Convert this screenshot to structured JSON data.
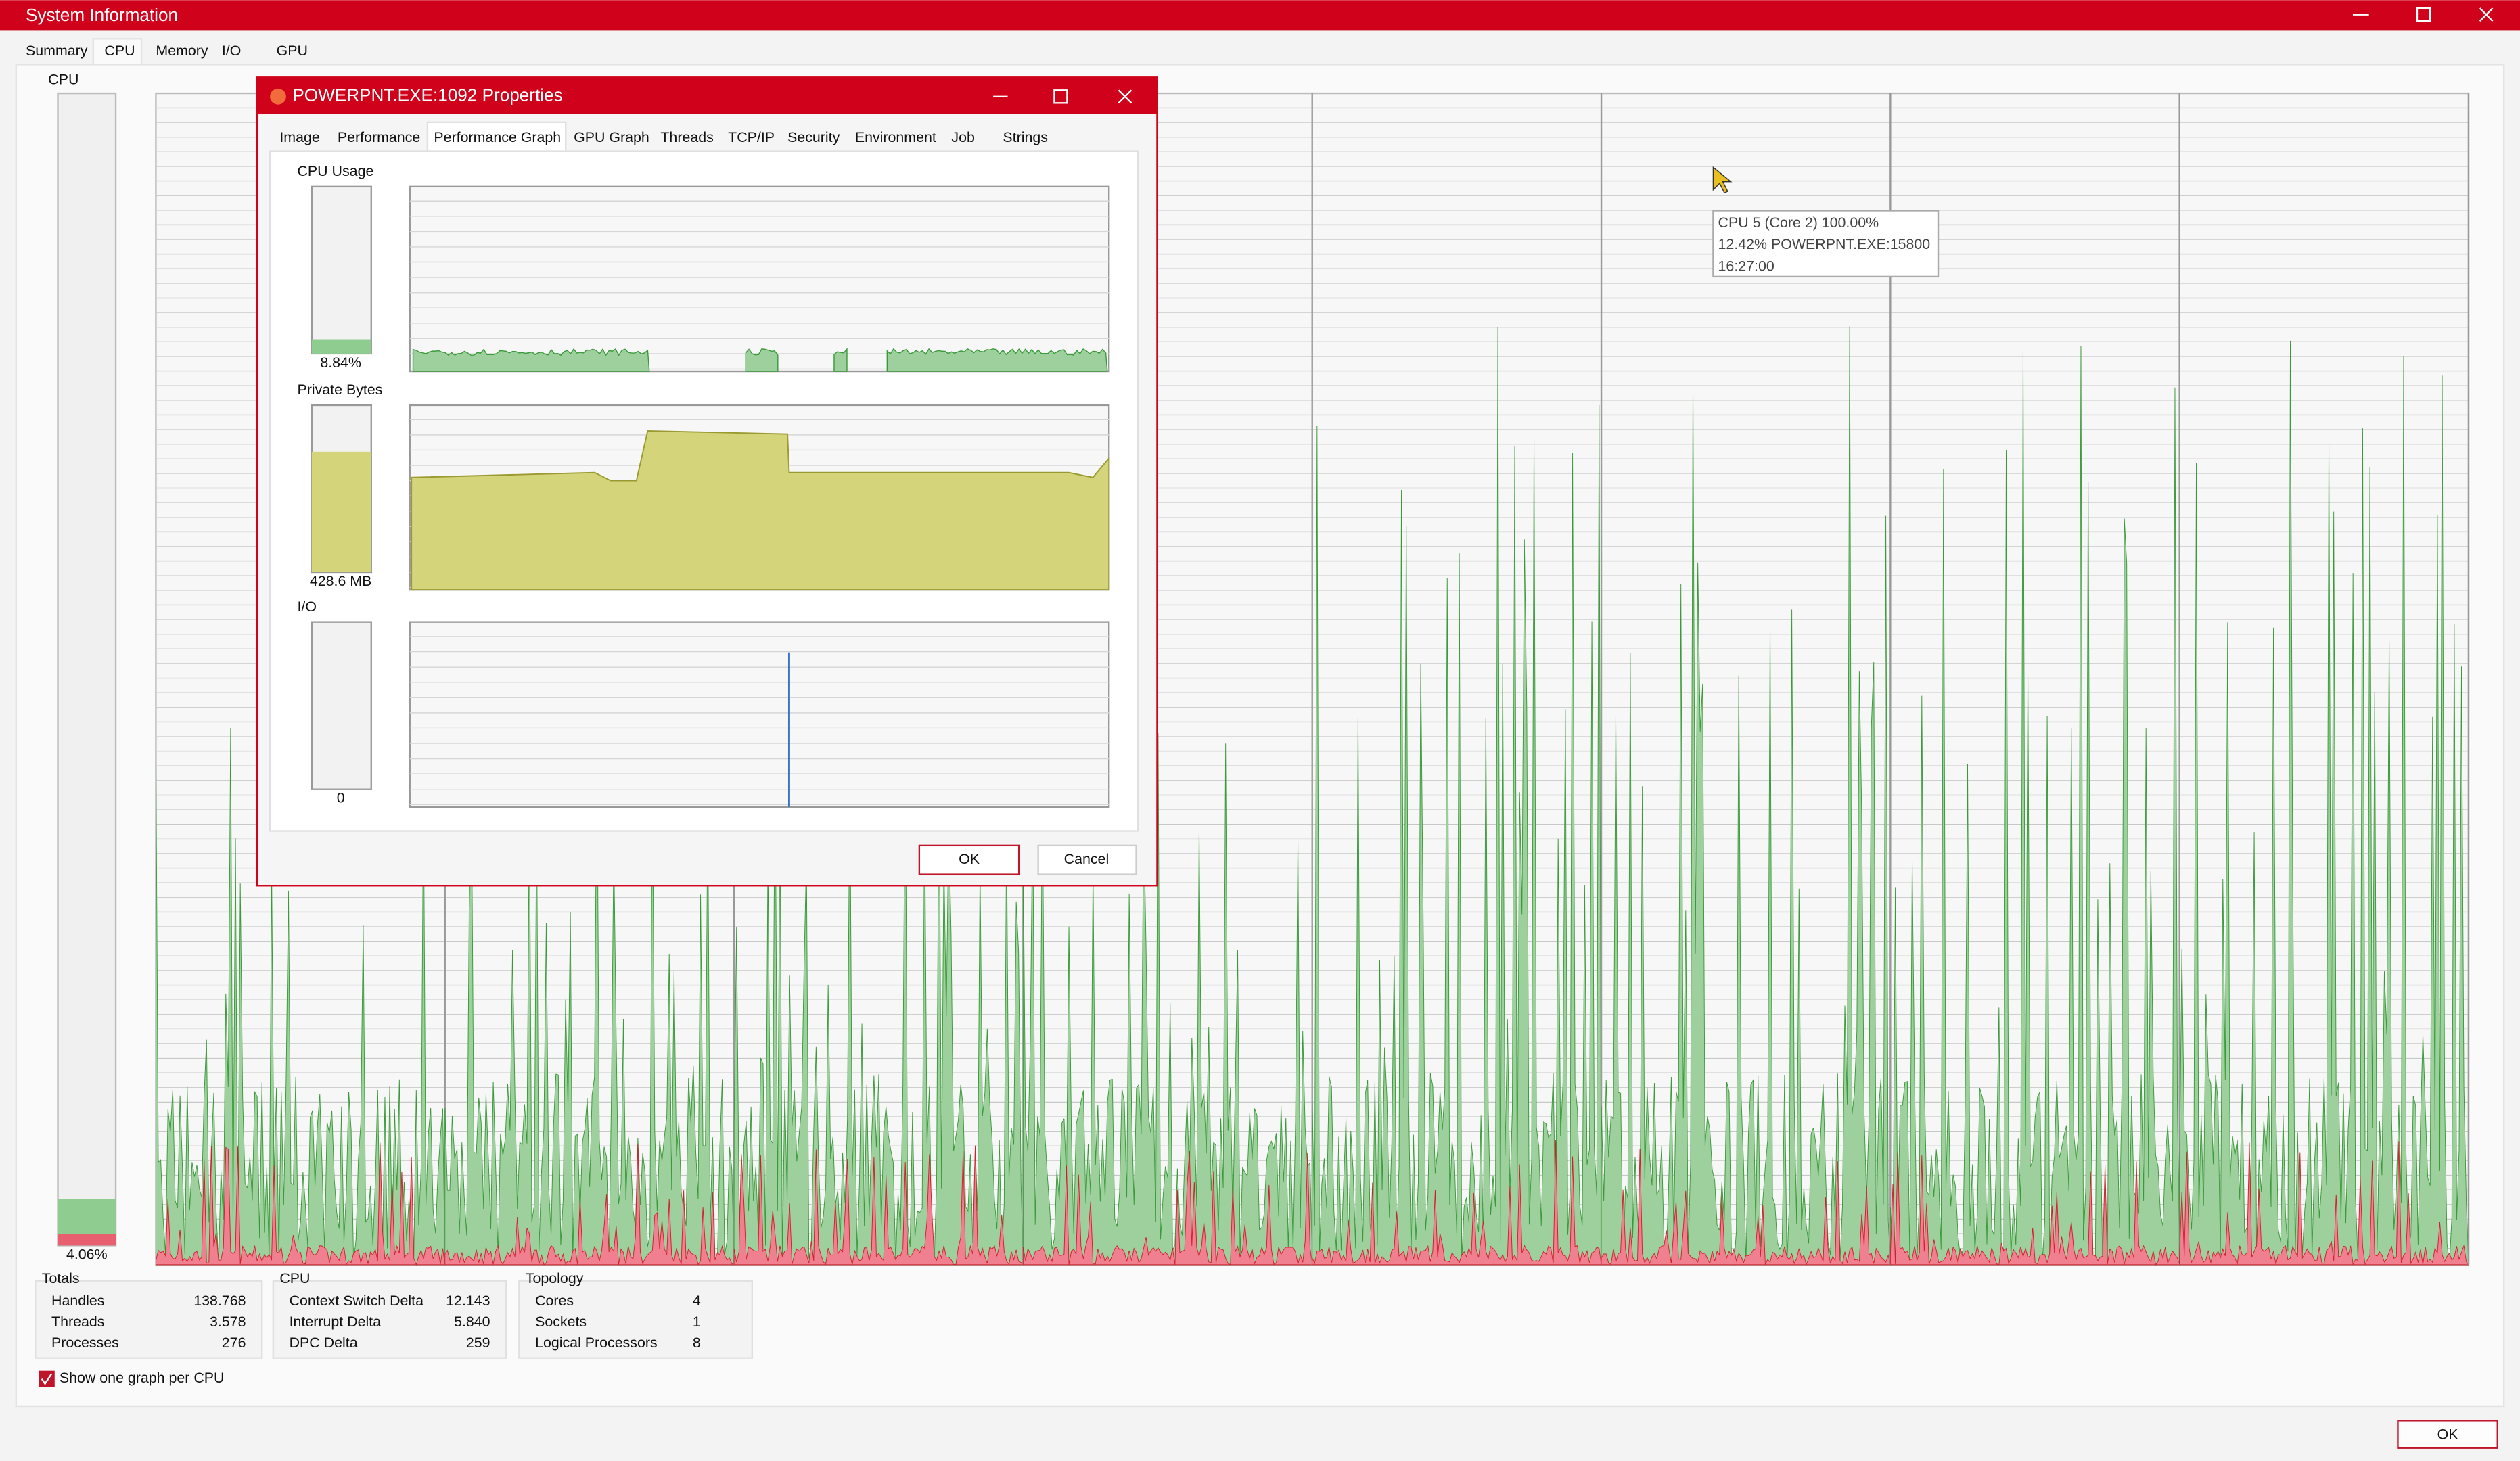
{
  "window": {
    "title": "System Information",
    "tabs": [
      "Summary",
      "CPU",
      "Memory",
      "I/O",
      "GPU"
    ],
    "cpu_label": "CPU",
    "cpu_value": "4.06%",
    "ok": "OK",
    "tooltip": [
      "CPU 5 (Core 2) 100.00%",
      "12.42% POWERPNT.EXE:15800",
      "16:27:00"
    ],
    "totals": {
      "title": "Totals",
      "rows": [
        [
          "Handles",
          "138.768"
        ],
        [
          "Threads",
          "3.578"
        ],
        [
          "Processes",
          "276"
        ]
      ]
    },
    "cpu": {
      "title": "CPU",
      "rows": [
        [
          "Context Switch Delta",
          "12.143"
        ],
        [
          "Interrupt Delta",
          "5.840"
        ],
        [
          "DPC Delta",
          "259"
        ]
      ]
    },
    "topology": {
      "title": "Topology",
      "rows": [
        [
          "Cores",
          "4"
        ],
        [
          "Sockets",
          "1"
        ],
        [
          "Logical Processors",
          "8"
        ]
      ]
    },
    "checkbox": "Show one graph per CPU"
  },
  "dialog": {
    "title": "POWERPNT.EXE:1092 Properties",
    "tabs": [
      "Image",
      "Performance",
      "Performance Graph",
      "GPU Graph",
      "Threads",
      "TCP/IP",
      "Security",
      "Environment",
      "Job",
      "Strings"
    ],
    "sections": [
      {
        "label": "CPU Usage",
        "value": "8.84%"
      },
      {
        "label": "Private Bytes",
        "value": "428.6 MB"
      },
      {
        "label": "I/O",
        "value": "0"
      }
    ],
    "ok": "OK",
    "cancel": "Cancel"
  }
}
